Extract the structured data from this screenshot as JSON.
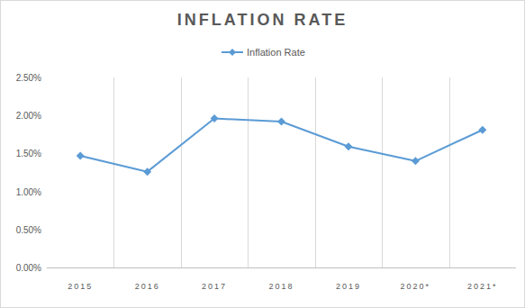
{
  "chart_data": {
    "type": "line",
    "title": "INFLATION RATE",
    "categories": [
      "2015",
      "2016",
      "2017",
      "2018",
      "2019",
      "2020*",
      "2021*"
    ],
    "series": [
      {
        "name": "Inflation Rate",
        "color": "#5b9bd5",
        "marker": "diamond",
        "values": [
          1.47,
          1.26,
          1.96,
          1.92,
          1.59,
          1.4,
          1.81
        ]
      }
    ],
    "ylim": [
      0,
      2.5
    ],
    "yticks": [
      {
        "value": 0,
        "label": "0.00%"
      },
      {
        "value": 0.5,
        "label": "0.50%"
      },
      {
        "value": 1,
        "label": "1.00%"
      },
      {
        "value": 1.5,
        "label": "1.50%"
      },
      {
        "value": 2,
        "label": "2.00%"
      },
      {
        "value": 2.5,
        "label": "2.50%"
      }
    ],
    "grid": true,
    "legend": "top"
  }
}
